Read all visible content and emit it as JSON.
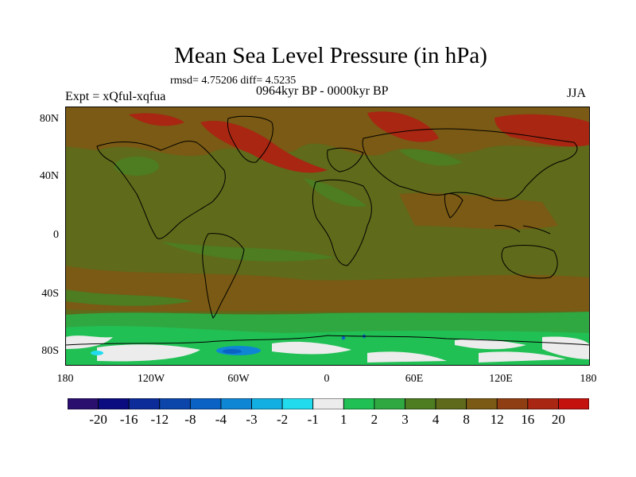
{
  "title": "Mean Sea Level Pressure (in hPa)",
  "stats": "rmsd= 4.75206 diff= 4.5235",
  "experiment": "Expt = xQful-xqfua",
  "period": "0964kyr BP - 0000kyr BP",
  "season": "JJA",
  "lat_labels": [
    "80N",
    "40N",
    "0",
    "40S",
    "80S"
  ],
  "lon_labels": [
    "180",
    "120W",
    "60W",
    "0",
    "60E",
    "120E",
    "180"
  ],
  "colorbar": {
    "labels": [
      "-20",
      "-16",
      "-12",
      "-8",
      "-4",
      "-3",
      "-2",
      "-1",
      "1",
      "2",
      "3",
      "4",
      "8",
      "12",
      "16",
      "20"
    ],
    "colors": [
      "#2a0f6e",
      "#0b0c80",
      "#0c2c9a",
      "#0c46aa",
      "#0a62c4",
      "#0f86d4",
      "#12b0e2",
      "#22dcee",
      "#ececec",
      "#21c054",
      "#2fa842",
      "#4d7c21",
      "#5f6a1a",
      "#7a5a14",
      "#8e3e12",
      "#a82612",
      "#c4120f"
    ]
  },
  "map_colors": {
    "ocean_base": "#5f6a1a",
    "warm": "#7a5a14",
    "hot": "#a82612",
    "green": "#4d7c21",
    "bright_green": "#21c054",
    "white": "#ececec",
    "blue": "#0a62c4",
    "cyan": "#22dcee"
  }
}
